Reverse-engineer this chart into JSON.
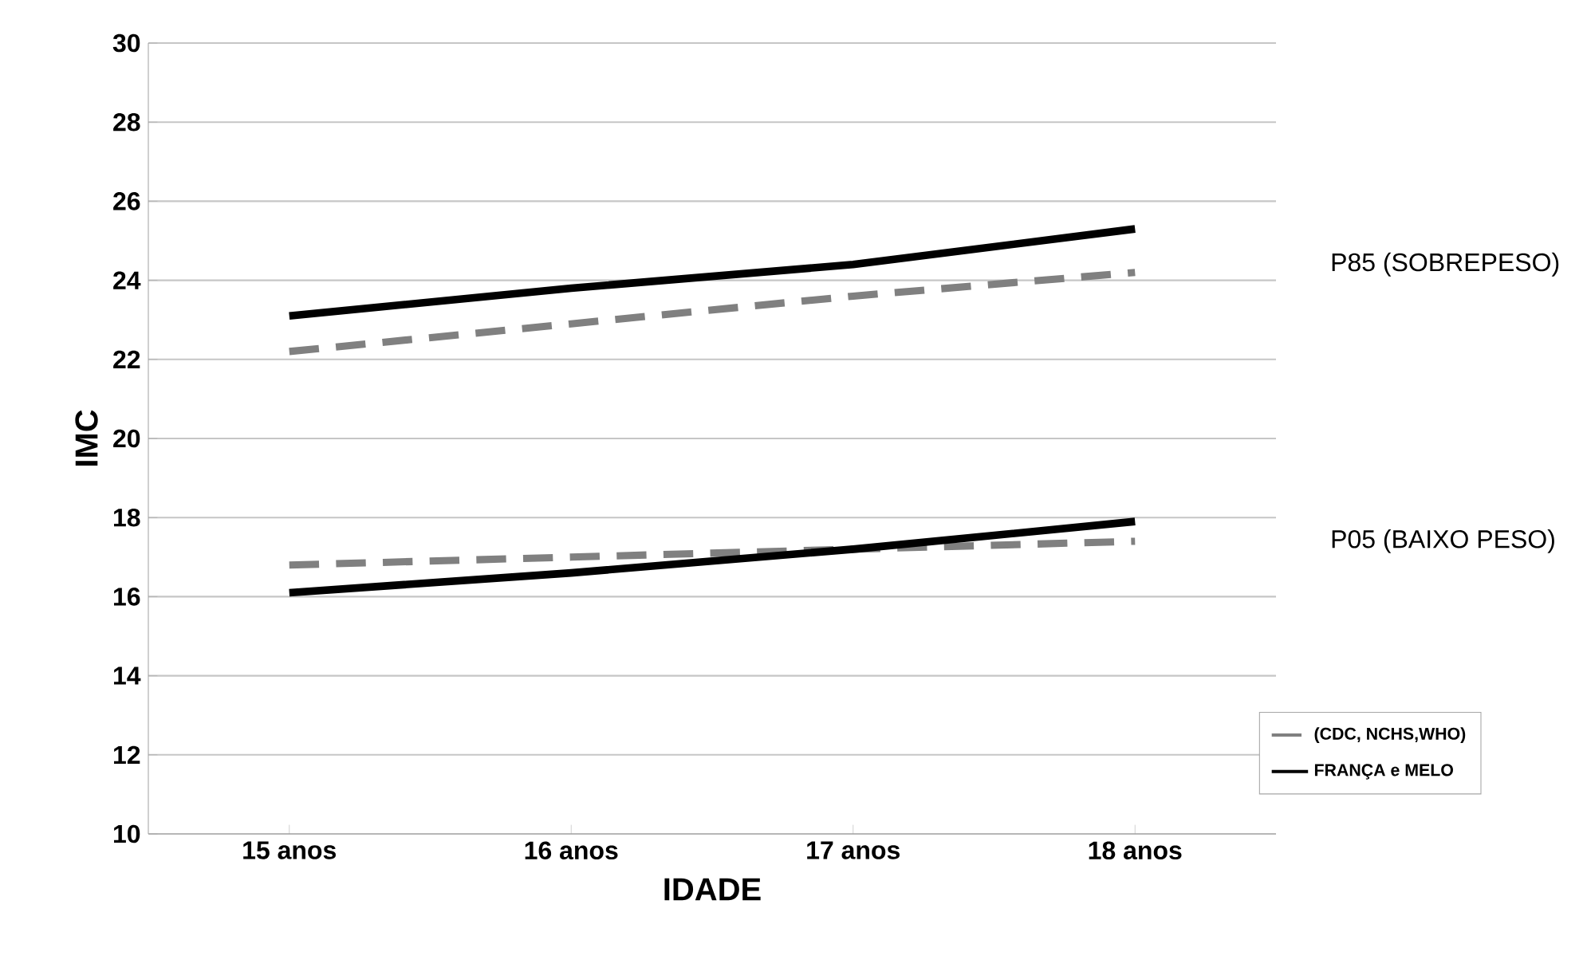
{
  "chart_data": {
    "type": "line",
    "xlabel": "IDADE",
    "ylabel": "IMC",
    "categories": [
      "15 anos",
      "16 anos",
      "17 anos",
      "18 anos"
    ],
    "series": [
      {
        "name": "(CDC, NCHS,WHO)",
        "color": "#808080",
        "line_style": "dashed",
        "values": [
          22.2,
          22.9,
          23.6,
          24.2
        ]
      },
      {
        "name": "FRANÇA e MELO",
        "color": "#000000",
        "line_style": "solid",
        "values": [
          23.1,
          23.8,
          24.4,
          25.3
        ]
      },
      {
        "color": "#808080",
        "line_style": "dashed",
        "values": [
          16.8,
          17.0,
          17.2,
          17.4
        ]
      },
      {
        "color": "#000000",
        "line_style": "solid",
        "values": [
          16.1,
          16.6,
          17.2,
          17.9
        ]
      }
    ],
    "ylim": [
      10,
      30
    ],
    "yticks": [
      10,
      12,
      14,
      16,
      18,
      20,
      22,
      24,
      26,
      28,
      30
    ],
    "grid": "y",
    "legend": "bottom right",
    "marker": "none",
    "annotations": [
      "P85 (SOBREPESO)",
      "P05 (BAIXO PESO)"
    ]
  }
}
